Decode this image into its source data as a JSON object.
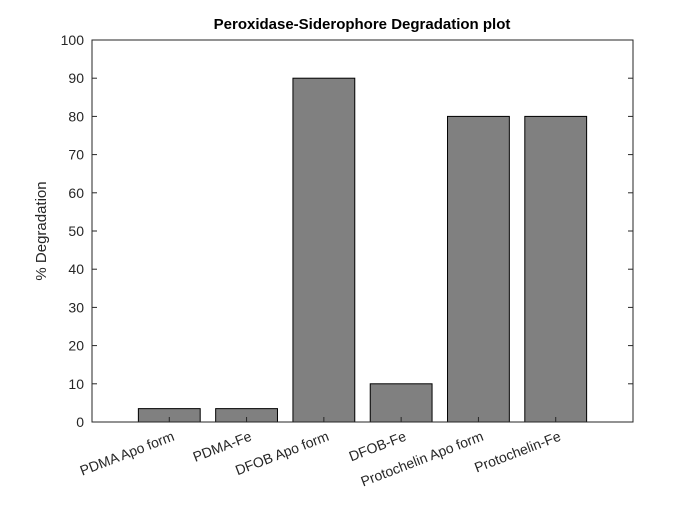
{
  "chart_data": {
    "type": "bar",
    "title": "Peroxidase-Siderophore Degradation plot",
    "xlabel": "",
    "ylabel": "% Degradation",
    "categories": [
      "PDMA Apo form",
      "PDMA-Fe",
      "DFOB Apo form",
      "DFOB-Fe",
      "Protochelin Apo form",
      "Protochelin-Fe"
    ],
    "values": [
      3.5,
      3.5,
      90,
      10,
      80,
      80
    ],
    "ylim": [
      0,
      100
    ],
    "yticks": [
      "0",
      "10",
      "20",
      "30",
      "40",
      "50",
      "60",
      "70",
      "80",
      "90",
      "100"
    ],
    "grid": false,
    "bar_color": "#808080",
    "edge_color": "#000000"
  }
}
